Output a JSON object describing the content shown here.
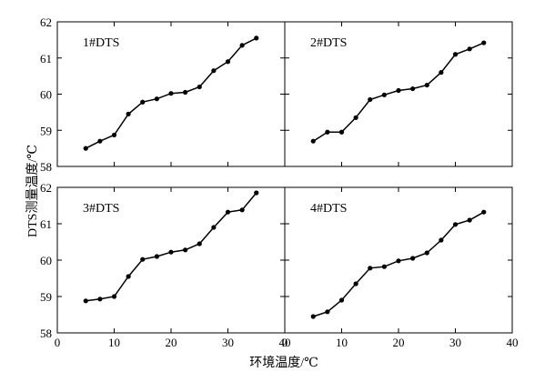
{
  "figure": {
    "ylabel": "DTS测量温度/℃",
    "xlabel": "环境温度/℃"
  },
  "chart_data": [
    {
      "type": "line",
      "panel_label": "1#DTS",
      "xlim": [
        0,
        40
      ],
      "ylim": [
        58,
        62
      ],
      "xticks": [
        0,
        10,
        20,
        30,
        40
      ],
      "yticks": [
        58,
        59,
        60,
        61,
        62
      ],
      "series": [
        {
          "x": [
            5,
            7.5,
            10,
            12.5,
            15,
            17.5,
            20,
            22.5,
            25,
            27.5,
            30,
            32.5,
            35
          ],
          "y": [
            58.5,
            58.7,
            58.87,
            59.45,
            59.78,
            59.87,
            60.02,
            60.05,
            60.2,
            60.65,
            60.9,
            61.35,
            61.55
          ]
        }
      ]
    },
    {
      "type": "line",
      "panel_label": "2#DTS",
      "xlim": [
        0,
        40
      ],
      "ylim": [
        58,
        62
      ],
      "xticks": [
        0,
        10,
        20,
        30,
        40
      ],
      "yticks": [
        58,
        59,
        60,
        61,
        62
      ],
      "series": [
        {
          "x": [
            5,
            7.5,
            10,
            12.5,
            15,
            17.5,
            20,
            22.5,
            25,
            27.5,
            30,
            32.5,
            35
          ],
          "y": [
            58.7,
            58.95,
            58.95,
            59.35,
            59.85,
            59.98,
            60.1,
            60.15,
            60.25,
            60.6,
            61.1,
            61.25,
            61.42
          ]
        }
      ]
    },
    {
      "type": "line",
      "panel_label": "3#DTS",
      "xlim": [
        0,
        40
      ],
      "ylim": [
        58,
        62
      ],
      "xticks": [
        0,
        10,
        20,
        30,
        40
      ],
      "yticks": [
        58,
        59,
        60,
        61,
        62
      ],
      "series": [
        {
          "x": [
            5,
            7.5,
            10,
            12.5,
            15,
            17.5,
            20,
            22.5,
            25,
            27.5,
            30,
            32.5,
            35
          ],
          "y": [
            58.88,
            58.93,
            59.0,
            59.55,
            60.02,
            60.1,
            60.22,
            60.28,
            60.45,
            60.9,
            61.32,
            61.38,
            61.85
          ]
        }
      ]
    },
    {
      "type": "line",
      "panel_label": "4#DTS",
      "xlim": [
        0,
        40
      ],
      "ylim": [
        58,
        62
      ],
      "xticks": [
        0,
        10,
        20,
        30,
        40
      ],
      "yticks": [
        58,
        59,
        60,
        61,
        62
      ],
      "series": [
        {
          "x": [
            5,
            7.5,
            10,
            12.5,
            15,
            17.5,
            20,
            22.5,
            25,
            27.5,
            30,
            32.5,
            35
          ],
          "y": [
            58.45,
            58.58,
            58.9,
            59.35,
            59.78,
            59.82,
            59.98,
            60.05,
            60.2,
            60.55,
            60.98,
            61.1,
            61.32
          ]
        }
      ]
    }
  ]
}
